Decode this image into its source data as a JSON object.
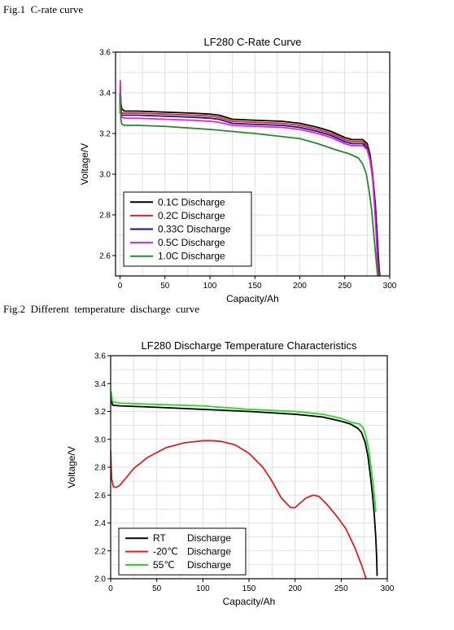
{
  "captions": {
    "fig1": "Fig.1  C-rate curve",
    "fig2": "Fig.2  Different  temperature  discharge  curve"
  },
  "chart_data": [
    {
      "type": "line",
      "title": "LF280 C-Rate Curve",
      "xlabel": "Capacity/Ah",
      "ylabel": "Voltage/V",
      "xlim": [
        -5,
        300
      ],
      "ylim": [
        2.5,
        3.6
      ],
      "xticks": [
        0,
        50,
        100,
        150,
        200,
        250,
        300
      ],
      "yticks": [
        2.6,
        2.8,
        3.0,
        3.2,
        3.4,
        3.6
      ],
      "ytick_labels": [
        "2.6",
        "2.8",
        "3.0",
        "3.2",
        "3.4",
        "3.6"
      ],
      "grid": true,
      "legend_position": "bottom-left",
      "series": [
        {
          "name": "0.1C   Discharge",
          "color": "#000000",
          "x": [
            0,
            0.3,
            1,
            2,
            5,
            20,
            50,
            80,
            100,
            110,
            125,
            150,
            180,
            200,
            220,
            235,
            250,
            258,
            270,
            275,
            278,
            281,
            284,
            286,
            288,
            289
          ],
          "y": [
            3.36,
            3.42,
            3.35,
            3.32,
            3.31,
            3.31,
            3.305,
            3.3,
            3.295,
            3.29,
            3.27,
            3.265,
            3.26,
            3.25,
            3.23,
            3.21,
            3.18,
            3.17,
            3.17,
            3.15,
            3.1,
            3.0,
            2.85,
            2.7,
            2.55,
            2.5
          ]
        },
        {
          "name": "0.2C   Discharge",
          "color": "#e02020",
          "x": [
            0,
            0.3,
            1,
            2,
            5,
            20,
            50,
            80,
            100,
            110,
            125,
            150,
            180,
            200,
            220,
            235,
            250,
            258,
            270,
            275,
            278,
            281,
            284,
            286,
            287.5,
            288.5
          ],
          "y": [
            3.35,
            3.4,
            3.32,
            3.3,
            3.3,
            3.3,
            3.295,
            3.29,
            3.285,
            3.28,
            3.26,
            3.255,
            3.25,
            3.24,
            3.22,
            3.2,
            3.17,
            3.16,
            3.16,
            3.14,
            3.09,
            2.99,
            2.85,
            2.7,
            2.55,
            2.5
          ]
        },
        {
          "name": "0.33C Discharge",
          "color": "#10109a",
          "x": [
            0,
            0.3,
            1,
            2,
            5,
            20,
            50,
            80,
            100,
            110,
            125,
            150,
            180,
            200,
            220,
            235,
            250,
            258,
            270,
            275,
            278,
            281,
            284,
            286,
            287,
            288
          ],
          "y": [
            3.34,
            3.4,
            3.31,
            3.29,
            3.29,
            3.29,
            3.285,
            3.28,
            3.275,
            3.27,
            3.25,
            3.245,
            3.24,
            3.23,
            3.21,
            3.19,
            3.16,
            3.15,
            3.15,
            3.13,
            3.08,
            2.98,
            2.84,
            2.7,
            2.55,
            2.5
          ]
        },
        {
          "name": "0.5C   Discharge",
          "color": "#e020e0",
          "x": [
            0,
            0.3,
            1,
            2,
            5,
            20,
            50,
            80,
            100,
            110,
            125,
            150,
            180,
            200,
            220,
            235,
            250,
            258,
            270,
            275,
            278,
            281,
            283,
            285,
            286.5,
            287.5
          ],
          "y": [
            3.33,
            3.46,
            3.3,
            3.28,
            3.275,
            3.275,
            3.27,
            3.265,
            3.26,
            3.255,
            3.24,
            3.235,
            3.23,
            3.22,
            3.2,
            3.18,
            3.15,
            3.14,
            3.14,
            3.12,
            3.07,
            2.98,
            2.85,
            2.7,
            2.55,
            2.5
          ]
        },
        {
          "name": "1.0C   Discharge",
          "color": "#2a8a2a",
          "x": [
            0,
            0.3,
            1,
            2,
            5,
            20,
            50,
            100,
            150,
            180,
            200,
            220,
            240,
            255,
            265,
            270,
            274,
            277,
            280,
            282,
            284,
            285.5,
            286.5
          ],
          "y": [
            3.3,
            3.4,
            3.27,
            3.245,
            3.24,
            3.24,
            3.235,
            3.22,
            3.2,
            3.185,
            3.175,
            3.15,
            3.12,
            3.1,
            3.08,
            3.05,
            3.0,
            2.92,
            2.82,
            2.72,
            2.62,
            2.55,
            2.5
          ]
        }
      ]
    },
    {
      "type": "line",
      "title": "LF280 Discharge Temperature Characteristics",
      "xlabel": "Capacity/Ah",
      "ylabel": "Voltage/V",
      "xlim": [
        0,
        300
      ],
      "ylim": [
        2.0,
        3.6
      ],
      "xticks": [
        0,
        50,
        100,
        150,
        200,
        250,
        300
      ],
      "yticks": [
        2.0,
        2.2,
        2.4,
        2.6,
        2.8,
        3.0,
        3.2,
        3.4,
        3.6
      ],
      "ytick_labels": [
        "2.0",
        "2.2",
        "2.4",
        "2.6",
        "2.8",
        "3.0",
        "3.2",
        "3.4",
        "3.6"
      ],
      "grid": true,
      "legend_position": "bottom-left",
      "series": [
        {
          "name": "RT",
          "label": "Discharge",
          "color": "#000000",
          "x": [
            0,
            0.5,
            2,
            10,
            50,
            100,
            150,
            200,
            230,
            250,
            260,
            268,
            272,
            276,
            279,
            282,
            284,
            286,
            287.5,
            288.5,
            289
          ],
          "y": [
            3.26,
            3.3,
            3.245,
            3.24,
            3.23,
            3.215,
            3.2,
            3.18,
            3.16,
            3.13,
            3.11,
            3.08,
            3.05,
            2.98,
            2.88,
            2.72,
            2.6,
            2.45,
            2.3,
            2.15,
            2.02
          ]
        },
        {
          "name": "-20℃",
          "label": "Discharge",
          "color": "#e02020",
          "x": [
            0,
            1,
            3,
            6,
            10,
            15,
            25,
            40,
            60,
            80,
            100,
            110,
            120,
            135,
            150,
            165,
            175,
            185,
            195,
            200,
            205,
            212,
            220,
            226,
            235,
            245,
            255,
            265,
            272,
            277
          ],
          "y": [
            2.92,
            2.72,
            2.66,
            2.655,
            2.67,
            2.71,
            2.79,
            2.87,
            2.94,
            2.975,
            2.99,
            2.99,
            2.985,
            2.96,
            2.9,
            2.8,
            2.7,
            2.58,
            2.51,
            2.51,
            2.54,
            2.58,
            2.6,
            2.59,
            2.53,
            2.45,
            2.36,
            2.22,
            2.1,
            2.0
          ]
        },
        {
          "name": "55℃",
          "label": "Discharge",
          "color": "#22dd22",
          "x": [
            0,
            0.5,
            2,
            10,
            50,
            100,
            150,
            200,
            230,
            250,
            262,
            270,
            274,
            277,
            280,
            282,
            283.5,
            285,
            286.5,
            287.5
          ],
          "y": [
            3.3,
            3.34,
            3.27,
            3.26,
            3.25,
            3.24,
            3.215,
            3.2,
            3.18,
            3.15,
            3.12,
            3.11,
            3.08,
            3.02,
            2.92,
            2.82,
            2.74,
            2.66,
            2.56,
            2.48
          ]
        }
      ]
    }
  ]
}
